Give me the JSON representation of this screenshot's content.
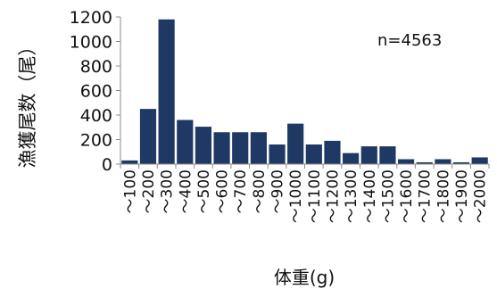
{
  "chart_data": {
    "type": "bar",
    "title": "",
    "annotation": "n=4563",
    "xlabel": "体重(g)",
    "ylabel": "漁獲尾数（尾）",
    "ylim": [
      0,
      1200
    ],
    "yticks": [
      0,
      200,
      400,
      600,
      800,
      1000,
      1200
    ],
    "grid": false,
    "legend": "none",
    "categories": [
      "～100",
      "～200",
      "～300",
      "～400",
      "～500",
      "～600",
      "～700",
      "～800",
      "～900",
      "～1000",
      "～1100",
      "～1200",
      "～1300",
      "～1400",
      "～1500",
      "～1600",
      "～1700",
      "～1800",
      "～1900",
      "～2000"
    ],
    "values": [
      30,
      450,
      1180,
      360,
      305,
      260,
      260,
      260,
      160,
      330,
      160,
      190,
      90,
      145,
      145,
      40,
      15,
      40,
      15,
      55
    ],
    "bar_color": "#203864"
  }
}
